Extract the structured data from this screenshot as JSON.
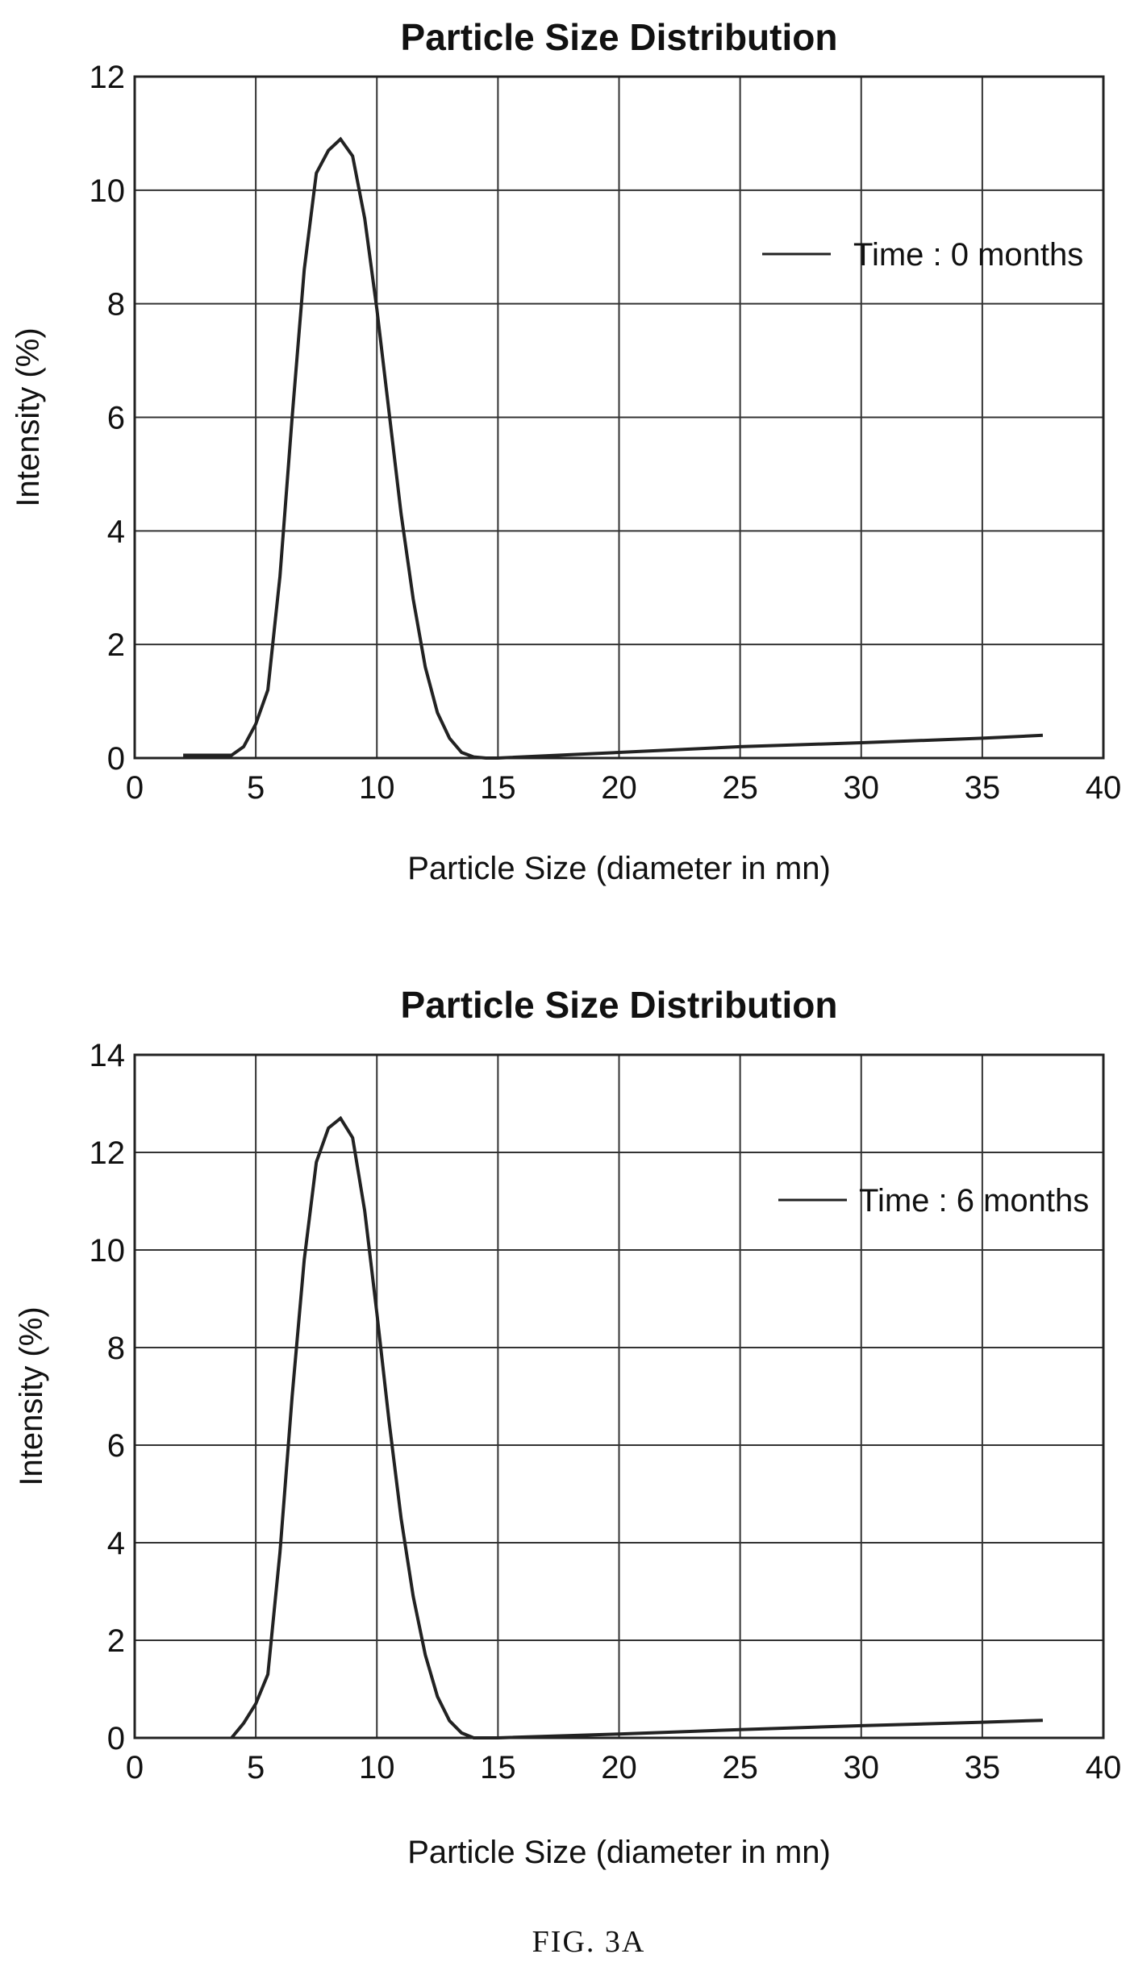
{
  "figure": {
    "caption": "FIG. 3A"
  },
  "chart_data": [
    {
      "type": "line",
      "title": "Particle Size Distribution",
      "xlabel": "Particle Size (diameter in mn)",
      "ylabel": "Intensity (%)",
      "xlim": [
        0,
        40
      ],
      "ylim": [
        0,
        12
      ],
      "xticks": [
        0,
        5,
        10,
        15,
        20,
        25,
        30,
        35,
        40
      ],
      "yticks": [
        0,
        2,
        4,
        6,
        8,
        10,
        12
      ],
      "grid": true,
      "legend_position": "top-right",
      "series": [
        {
          "name": "Time : 0 months",
          "color": "#222222",
          "x": [
            2,
            3,
            4,
            4.5,
            5,
            5.5,
            6,
            6.5,
            7,
            7.5,
            8,
            8.5,
            9,
            9.5,
            10,
            10.5,
            11,
            11.5,
            12,
            12.5,
            13,
            13.5,
            14,
            14.5,
            15,
            20,
            25,
            30,
            35,
            37.5
          ],
          "y": [
            0.05,
            0.05,
            0.05,
            0.2,
            0.6,
            1.2,
            3.2,
            6.0,
            8.6,
            10.3,
            10.7,
            10.9,
            10.6,
            9.5,
            7.9,
            6.1,
            4.3,
            2.8,
            1.6,
            0.8,
            0.35,
            0.1,
            0.02,
            0.0,
            0.0,
            0.1,
            0.2,
            0.27,
            0.35,
            0.4
          ]
        }
      ]
    },
    {
      "type": "line",
      "title": "Particle Size Distribution",
      "xlabel": "Particle Size (diameter in mn)",
      "ylabel": "Intensity (%)",
      "xlim": [
        0,
        40
      ],
      "ylim": [
        0,
        14
      ],
      "xticks": [
        0,
        5,
        10,
        15,
        20,
        25,
        30,
        35,
        40
      ],
      "yticks": [
        0,
        2,
        4,
        6,
        8,
        10,
        12,
        14
      ],
      "grid": true,
      "legend_position": "top-right",
      "series": [
        {
          "name": "Time : 6 months",
          "color": "#222222",
          "x": [
            4,
            4.5,
            5,
            5.5,
            6,
            6.5,
            7,
            7.5,
            8,
            8.5,
            9,
            9.5,
            10,
            10.5,
            11,
            11.5,
            12,
            12.5,
            13,
            13.5,
            14,
            15,
            20,
            25,
            30,
            35,
            37.5
          ],
          "y": [
            0.0,
            0.3,
            0.7,
            1.3,
            3.8,
            7.0,
            9.8,
            11.8,
            12.5,
            12.7,
            12.3,
            10.8,
            8.7,
            6.5,
            4.5,
            2.9,
            1.7,
            0.85,
            0.35,
            0.1,
            0.0,
            0.0,
            0.08,
            0.17,
            0.25,
            0.32,
            0.36
          ]
        }
      ]
    }
  ]
}
